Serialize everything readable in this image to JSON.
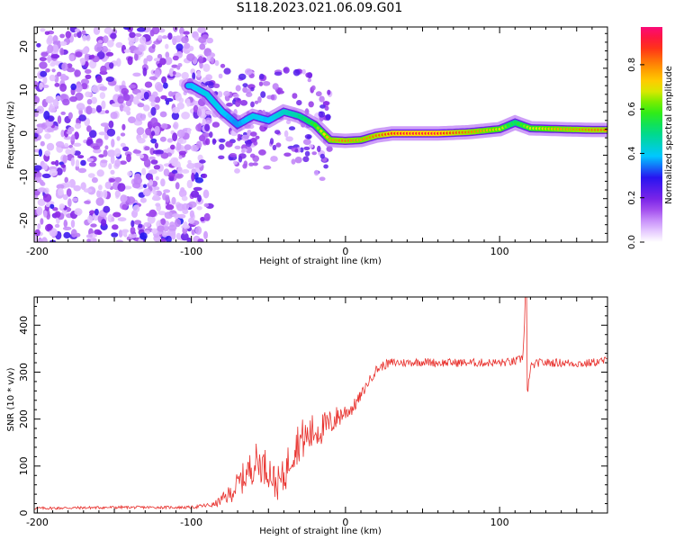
{
  "title": "S118.2023.021.06.09.G01",
  "chart_data": [
    {
      "type": "heatmap",
      "title": "",
      "xlabel": "Height of straight line (km)",
      "ylabel": "Frequency (Hz)",
      "xlim": [
        -202,
        170
      ],
      "ylim": [
        -25,
        24.5
      ],
      "xticks": [
        -200,
        -100,
        0,
        100
      ],
      "yticks": [
        -20,
        -10,
        0,
        10,
        20
      ],
      "colorbar": {
        "label": "Normalized spectral amplitude",
        "range": [
          0,
          0.97
        ],
        "ticks": [
          "0.0",
          "0.2",
          "0.4",
          "0.6",
          "0.8"
        ],
        "tick_values": [
          0,
          0.2,
          0.4,
          0.6,
          0.8
        ]
      },
      "ridge": {
        "x": [
          -100,
          -90,
          -80,
          -70,
          -60,
          -50,
          -40,
          -30,
          -20,
          -10,
          0,
          10,
          20,
          30,
          40,
          60,
          80,
          100,
          110,
          120,
          140,
          160,
          170
        ],
        "frequency": [
          11,
          9,
          5,
          2,
          4,
          3,
          5,
          4,
          2,
          -1.5,
          -1.7,
          -1.5,
          -0.5,
          0,
          0,
          0,
          0.3,
          1,
          2.5,
          1.2,
          1,
          0.8,
          0.8
        ],
        "amplitude": [
          0.35,
          0.4,
          0.38,
          0.3,
          0.4,
          0.35,
          0.45,
          0.5,
          0.6,
          0.8,
          0.85,
          0.8,
          0.85,
          0.92,
          0.95,
          0.95,
          0.85,
          0.75,
          0.55,
          0.7,
          0.8,
          0.85,
          0.85
        ]
      }
    },
    {
      "type": "line",
      "title": "",
      "xlabel": "Height of straight line (km)",
      "ylabel": "SNR (10 * v/v)",
      "xlim": [
        -202,
        170
      ],
      "ylim": [
        0,
        460
      ],
      "xticks": [
        -200,
        -100,
        0,
        100
      ],
      "yticks": [
        0,
        100,
        200,
        300,
        400
      ],
      "series": [
        {
          "color": "#e8312d",
          "x": [
            -200,
            -150,
            -100,
            -85,
            -75,
            -65,
            -58,
            -50,
            -45,
            -40,
            -35,
            -30,
            -25,
            -20,
            -15,
            -10,
            -5,
            0,
            5,
            10,
            15,
            20,
            25,
            30,
            40,
            50,
            60,
            80,
            100,
            110,
            115,
            117,
            118,
            120,
            125,
            140,
            155,
            170
          ],
          "values": [
            10,
            12,
            12,
            18,
            40,
            80,
            110,
            95,
            60,
            75,
            130,
            155,
            160,
            175,
            180,
            190,
            205,
            215,
            225,
            250,
            280,
            305,
            315,
            320,
            320,
            322,
            320,
            320,
            320,
            322,
            330,
            460,
            260,
            310,
            320,
            320,
            318,
            325
          ],
          "noise": [
            3,
            3,
            3,
            6,
            20,
            35,
            40,
            40,
            35,
            40,
            45,
            45,
            45,
            40,
            35,
            30,
            25,
            20,
            15,
            12,
            10,
            10,
            10,
            10,
            9,
            9,
            9,
            9,
            9,
            9,
            9,
            0,
            0,
            9,
            9,
            9,
            9,
            9
          ]
        }
      ]
    }
  ],
  "colors": {
    "line": "#e8312d",
    "axis": "#000000",
    "background": "#ffffff"
  }
}
